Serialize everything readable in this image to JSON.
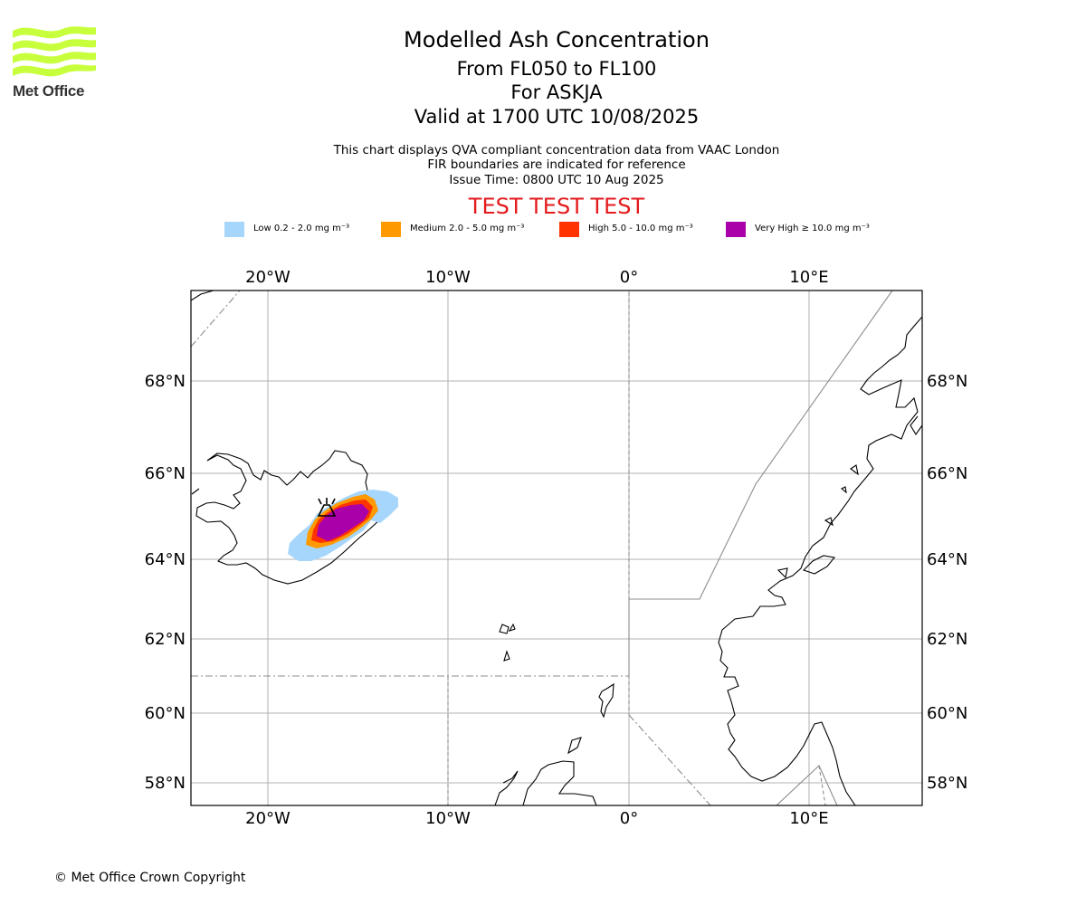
{
  "header": {
    "logo_text": "Met Office",
    "title": "Modelled Ash Concentration",
    "levels": "From FL050 to FL100",
    "volcano": "For ASKJA",
    "valid": "Valid at 1700 UTC 10/08/2025",
    "description": "This chart displays QVA compliant concentration data from VAAC London",
    "fir_note": "FIR boundaries are indicated for reference",
    "issue_time": "Issue Time: 0800 UTC 10 Aug 2025",
    "test_banner": "TEST TEST TEST"
  },
  "legend": [
    {
      "label": "Low 0.2 - 2.0 mg m⁻³",
      "color": "#a6d6fb"
    },
    {
      "label": "Medium 2.0 - 5.0 mg m⁻³",
      "color": "#ff9900"
    },
    {
      "label": "High 5.0 - 10.0 mg m⁻³",
      "color": "#ff3300"
    },
    {
      "label": "Very High  ≥  10.0 mg m⁻³",
      "color": "#aa00aa"
    }
  ],
  "map": {
    "lon_ticks": [
      "20°W",
      "10°W",
      "0°",
      "10°E"
    ],
    "lat_ticks": [
      "68°N",
      "66°N",
      "64°N",
      "62°N",
      "60°N",
      "58°N"
    ],
    "volcano_name": "ASKJA",
    "volcano_symbol": "volcano-icon"
  },
  "footer": {
    "copyright": "© Met Office Crown Copyright"
  }
}
